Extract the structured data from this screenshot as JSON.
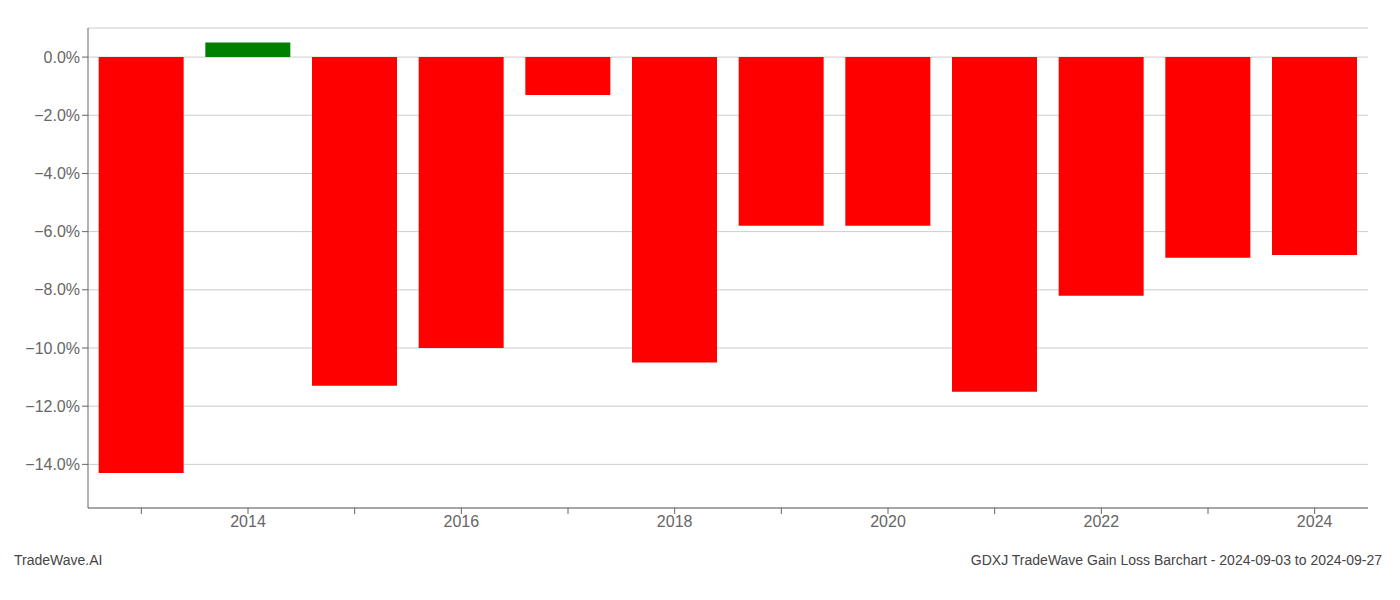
{
  "chart_data": {
    "type": "bar",
    "categories": [
      null,
      "2014",
      null,
      "2016",
      null,
      "2018",
      null,
      "2020",
      null,
      "2022",
      null,
      "2024"
    ],
    "values": [
      -14.3,
      0.5,
      -11.3,
      -10.0,
      -1.3,
      -10.5,
      -5.8,
      -5.8,
      -11.5,
      -8.2,
      -6.9,
      -6.8
    ],
    "colors": [
      "#ff0000",
      "#008000",
      "#ff0000",
      "#ff0000",
      "#ff0000",
      "#ff0000",
      "#ff0000",
      "#ff0000",
      "#ff0000",
      "#ff0000",
      "#ff0000",
      "#ff0000"
    ],
    "ylim": [
      -15.5,
      1.0
    ],
    "yticks": [
      {
        "value": 0.0,
        "label": "0.0%"
      },
      {
        "value": -2.0,
        "label": "−2.0%"
      },
      {
        "value": -4.0,
        "label": "−4.0%"
      },
      {
        "value": -6.0,
        "label": "−6.0%"
      },
      {
        "value": -8.0,
        "label": "−8.0%"
      },
      {
        "value": -10.0,
        "label": "−10.0%"
      },
      {
        "value": -12.0,
        "label": "−12.0%"
      },
      {
        "value": -14.0,
        "label": "−14.0%"
      }
    ],
    "grid": true,
    "annotations": [
      "TradeWave.AI",
      "GDXJ TradeWave Gain Loss Barchart - 2024-09-03 to 2024-09-27"
    ]
  }
}
